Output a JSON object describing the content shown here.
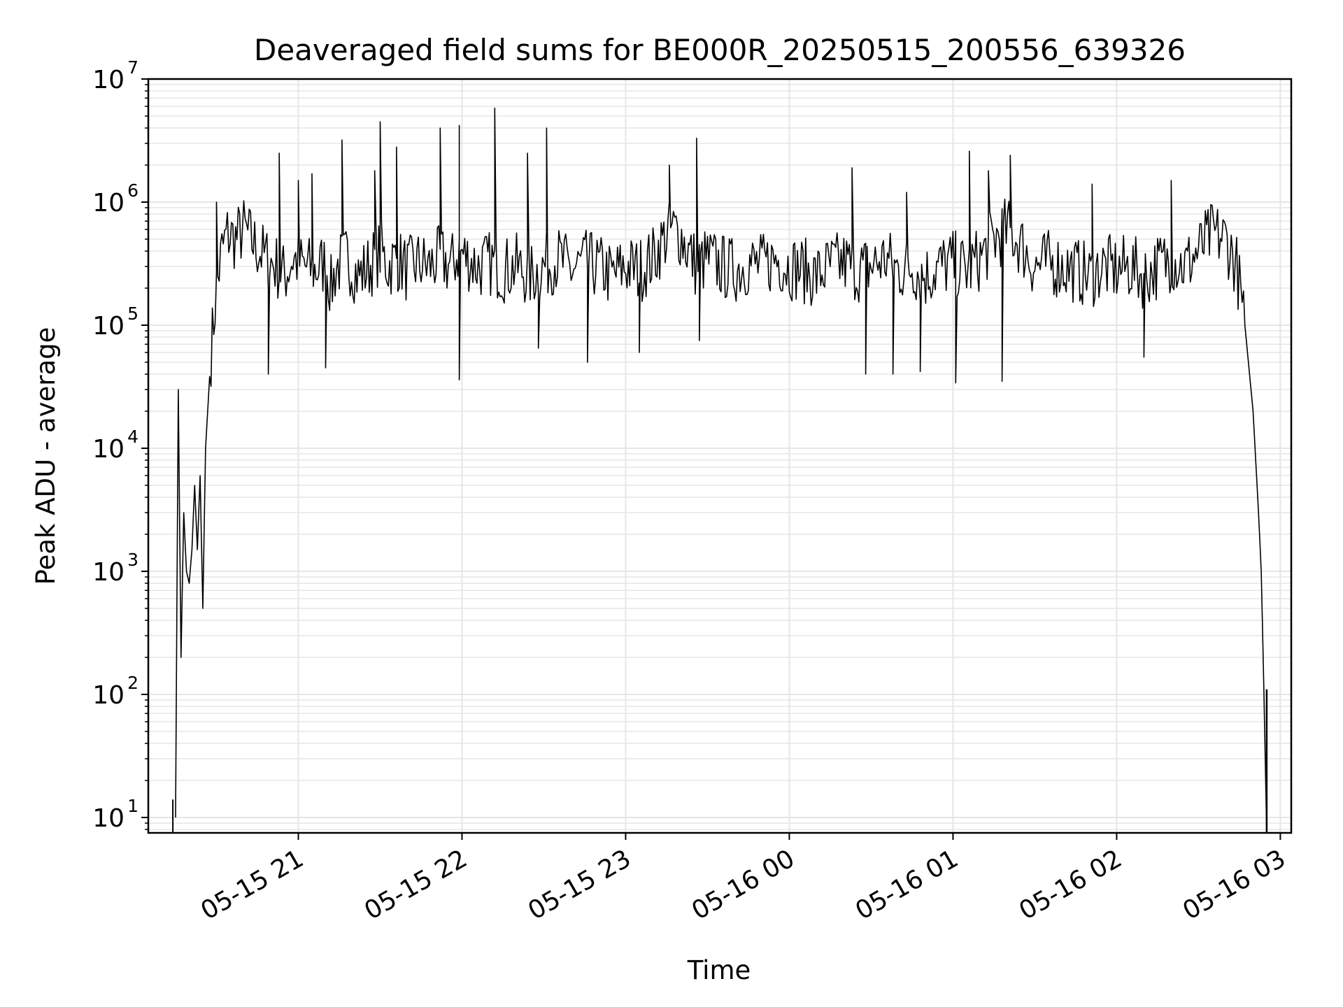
{
  "chart_data": {
    "type": "line",
    "title": "Deaveraged field sums for BE000R_20250515_200556_639326",
    "xlabel": "Time",
    "ylabel": "Peak ADU - average",
    "y_scale": "log",
    "ylim": [
      7.5,
      10000000
    ],
    "xlim": [
      "2025-05-15 20:05",
      "2025-05-16 03:04"
    ],
    "grid": true,
    "line_color": "#000000",
    "grid_color": "#e6e6e6",
    "x_ticks": [
      {
        "value": "2025-05-15 21:00",
        "label": "05-15 21"
      },
      {
        "value": "2025-05-15 22:00",
        "label": "05-15 22"
      },
      {
        "value": "2025-05-15 23:00",
        "label": "05-15 23"
      },
      {
        "value": "2025-05-16 00:00",
        "label": "05-16 00"
      },
      {
        "value": "2025-05-16 01:00",
        "label": "05-16 01"
      },
      {
        "value": "2025-05-16 02:00",
        "label": "05-16 02"
      },
      {
        "value": "2025-05-16 03:00",
        "label": "05-16 03"
      }
    ],
    "y_ticks": [
      {
        "value": 10,
        "base": "10",
        "exp": "1"
      },
      {
        "value": 100,
        "base": "10",
        "exp": "2"
      },
      {
        "value": 1000,
        "base": "10",
        "exp": "3"
      },
      {
        "value": 10000,
        "base": "10",
        "exp": "4"
      },
      {
        "value": 100000,
        "base": "10",
        "exp": "5"
      },
      {
        "value": 1000000,
        "base": "10",
        "exp": "6"
      },
      {
        "value": 10000000,
        "base": "10",
        "exp": "7"
      }
    ],
    "series": [
      {
        "x": [
          "2025-05-15 20:15",
          "2025-05-15 20:16",
          "2025-05-15 20:17",
          "2025-05-15 20:18",
          "2025-05-15 20:19",
          "2025-05-15 20:20",
          "2025-05-15 20:21",
          "2025-05-15 20:22",
          "2025-05-15 20:23",
          "2025-05-15 20:24",
          "2025-05-15 20:25",
          "2025-05-15 20:26",
          "2025-05-15 20:28",
          "2025-05-15 20:30",
          "2025-05-15 20:32",
          "2025-05-15 20:34",
          "2025-05-15 20:37",
          "2025-05-15 20:40",
          "2025-05-15 20:44",
          "2025-05-15 20:48",
          "2025-05-15 20:52",
          "2025-05-15 20:55",
          "2025-05-15 20:58",
          "2025-05-15 21:02",
          "2025-05-15 21:06",
          "2025-05-15 21:10",
          "2025-05-15 21:12",
          "2025-05-15 21:14",
          "2025-05-15 21:18",
          "2025-05-15 21:22",
          "2025-05-15 21:26",
          "2025-05-15 21:30",
          "2025-05-15 21:33",
          "2025-05-15 21:36",
          "2025-05-15 21:40",
          "2025-05-15 21:44",
          "2025-05-15 21:48",
          "2025-05-15 21:52",
          "2025-05-15 21:56",
          "2025-05-15 21:59",
          "2025-05-15 22:02",
          "2025-05-15 22:06",
          "2025-05-15 22:11",
          "2025-05-15 22:15",
          "2025-05-15 22:20",
          "2025-05-15 22:25",
          "2025-05-15 22:30",
          "2025-05-15 22:35",
          "2025-05-15 22:40",
          "2025-05-15 22:45",
          "2025-05-15 22:50",
          "2025-05-15 22:55",
          "2025-05-15 23:00",
          "2025-05-15 23:05",
          "2025-05-15 23:10",
          "2025-05-15 23:14",
          "2025-05-15 23:17",
          "2025-05-15 23:20",
          "2025-05-15 23:23",
          "2025-05-15 23:26",
          "2025-05-15 23:30",
          "2025-05-15 23:35",
          "2025-05-15 23:40",
          "2025-05-15 23:45",
          "2025-05-15 23:50",
          "2025-05-15 23:55",
          "2025-05-16 00:00",
          "2025-05-16 00:05",
          "2025-05-16 00:10",
          "2025-05-16 00:15",
          "2025-05-16 00:20",
          "2025-05-16 00:25",
          "2025-05-16 00:30",
          "2025-05-16 00:35",
          "2025-05-16 00:40",
          "2025-05-16 00:45",
          "2025-05-16 00:50",
          "2025-05-16 00:55",
          "2025-05-16 01:00",
          "2025-05-16 01:05",
          "2025-05-16 01:10",
          "2025-05-16 01:15",
          "2025-05-16 01:20",
          "2025-05-16 01:25",
          "2025-05-16 01:30",
          "2025-05-16 01:35",
          "2025-05-16 01:40",
          "2025-05-16 01:45",
          "2025-05-16 01:50",
          "2025-05-16 01:55",
          "2025-05-16 02:00",
          "2025-05-16 02:05",
          "2025-05-16 02:10",
          "2025-05-16 02:15",
          "2025-05-16 02:20",
          "2025-05-16 02:25",
          "2025-05-16 02:30",
          "2025-05-16 02:35",
          "2025-05-16 02:40",
          "2025-05-16 02:44",
          "2025-05-16 02:47",
          "2025-05-16 02:50",
          "2025-05-16 02:52",
          "2025-05-16 02:53",
          "2025-05-16 02:54",
          "2025-05-16 02:55"
        ],
        "y": [
          10,
          30000,
          200,
          3000,
          1000,
          800,
          1500,
          5000,
          1500,
          6000,
          500,
          10000,
          60000,
          200000,
          400000,
          550000,
          500000,
          600000,
          450000,
          350000,
          300000,
          250000,
          350000,
          300000,
          280000,
          320000,
          200000,
          300000,
          350000,
          250000,
          300000,
          400000,
          300000,
          350000,
          280000,
          320000,
          300000,
          350000,
          300000,
          400000,
          350000,
          300000,
          320000,
          280000,
          300000,
          250000,
          300000,
          350000,
          280000,
          320000,
          300000,
          250000,
          300000,
          280000,
          350000,
          500000,
          600000,
          550000,
          400000,
          300000,
          350000,
          300000,
          280000,
          320000,
          300000,
          350000,
          300000,
          280000,
          250000,
          300000,
          320000,
          280000,
          300000,
          350000,
          280000,
          300000,
          250000,
          300000,
          320000,
          280000,
          350000,
          500000,
          600000,
          450000,
          300000,
          320000,
          300000,
          280000,
          250000,
          300000,
          280000,
          300000,
          250000,
          300000,
          350000,
          300000,
          400000,
          550000,
          500000,
          300000,
          100000,
          20000,
          3000,
          1000,
          100,
          7
        ]
      }
    ],
    "spikes": [
      {
        "x": "2025-05-15 20:30",
        "y": 1000000
      },
      {
        "x": "2025-05-15 20:53",
        "y": 2500000
      },
      {
        "x": "2025-05-15 21:00",
        "y": 1500000
      },
      {
        "x": "2025-05-15 21:05",
        "y": 1700000
      },
      {
        "x": "2025-05-15 21:16",
        "y": 3200000
      },
      {
        "x": "2025-05-15 21:28",
        "y": 1800000
      },
      {
        "x": "2025-05-15 21:30",
        "y": 4500000
      },
      {
        "x": "2025-05-15 21:36",
        "y": 2800000
      },
      {
        "x": "2025-05-15 21:52",
        "y": 4000000
      },
      {
        "x": "2025-05-15 21:59",
        "y": 4200000
      },
      {
        "x": "2025-05-15 22:12",
        "y": 5800000
      },
      {
        "x": "2025-05-15 22:24",
        "y": 2500000
      },
      {
        "x": "2025-05-15 22:31",
        "y": 4000000
      },
      {
        "x": "2025-05-15 23:16",
        "y": 2000000
      },
      {
        "x": "2025-05-15 23:26",
        "y": 3300000
      },
      {
        "x": "2025-05-16 00:23",
        "y": 1900000
      },
      {
        "x": "2025-05-16 00:43",
        "y": 1200000
      },
      {
        "x": "2025-05-16 01:06",
        "y": 2600000
      },
      {
        "x": "2025-05-16 01:13",
        "y": 1800000
      },
      {
        "x": "2025-05-16 01:21",
        "y": 2400000
      },
      {
        "x": "2025-05-16 01:51",
        "y": 1400000
      },
      {
        "x": "2025-05-16 02:20",
        "y": 1500000
      }
    ],
    "dips": [
      {
        "x": "2025-05-15 20:49",
        "y": 40000
      },
      {
        "x": "2025-05-15 21:10",
        "y": 45000
      },
      {
        "x": "2025-05-15 21:59",
        "y": 36000
      },
      {
        "x": "2025-05-15 22:28",
        "y": 65000
      },
      {
        "x": "2025-05-15 22:46",
        "y": 50000
      },
      {
        "x": "2025-05-15 23:05",
        "y": 60000
      },
      {
        "x": "2025-05-15 23:27",
        "y": 75000
      },
      {
        "x": "2025-05-16 00:28",
        "y": 40000
      },
      {
        "x": "2025-05-16 00:38",
        "y": 40000
      },
      {
        "x": "2025-05-16 00:48",
        "y": 42000
      },
      {
        "x": "2025-05-16 01:01",
        "y": 34000
      },
      {
        "x": "2025-05-16 01:18",
        "y": 35000
      },
      {
        "x": "2025-05-16 02:10",
        "y": 55000
      }
    ]
  }
}
